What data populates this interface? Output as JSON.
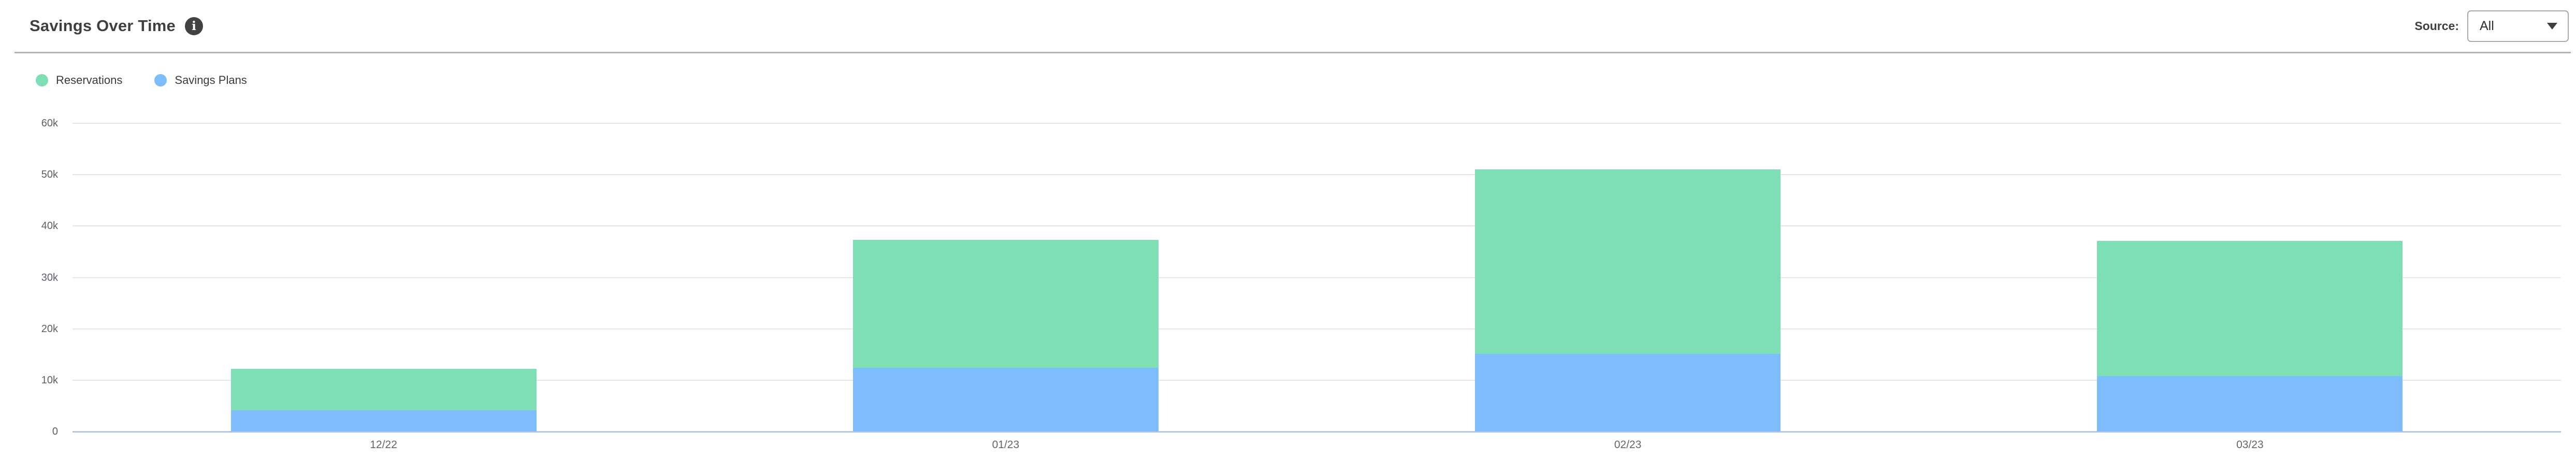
{
  "header": {
    "title": "Savings Over Time",
    "source_label": "Source:",
    "source_value": "All"
  },
  "legend": {
    "items": [
      {
        "label": "Reservations",
        "color": "#7EDFB4"
      },
      {
        "label": "Savings Plans",
        "color": "#7DBDFB"
      }
    ]
  },
  "chart_data": {
    "type": "bar",
    "stacked": true,
    "title": "Savings Over Time",
    "categories": [
      "12/22",
      "01/23",
      "02/23",
      "03/23"
    ],
    "series": [
      {
        "name": "Savings Plans",
        "color": "#7DBDFB",
        "values": [
          4100,
          12400,
          15100,
          10800
        ]
      },
      {
        "name": "Reservations",
        "color": "#7EDFB4",
        "values": [
          8100,
          24900,
          35900,
          26300
        ]
      }
    ],
    "stack_order_bottom_to_top": [
      "Savings Plans",
      "Reservations"
    ],
    "totals": [
      12200,
      37300,
      51000,
      37100
    ],
    "xlabel": "",
    "ylabel": "",
    "ylim": [
      0,
      60000
    ],
    "yticks": [
      0,
      10000,
      20000,
      30000,
      40000,
      50000,
      60000
    ],
    "ytick_labels": [
      "0",
      "10k",
      "20k",
      "30k",
      "40k",
      "50k",
      "60k"
    ],
    "grid": "horizontal",
    "legend_position": "top-left"
  },
  "colors": {
    "reservations": "#7EDFB4",
    "savings_plans": "#7DBDFB",
    "gridline": "#E5E5E7",
    "zero_line": "#BCC7DD",
    "axis_label": "#5E5E66",
    "title_text": "#3F3F41",
    "divider": "#B4B4B4"
  }
}
